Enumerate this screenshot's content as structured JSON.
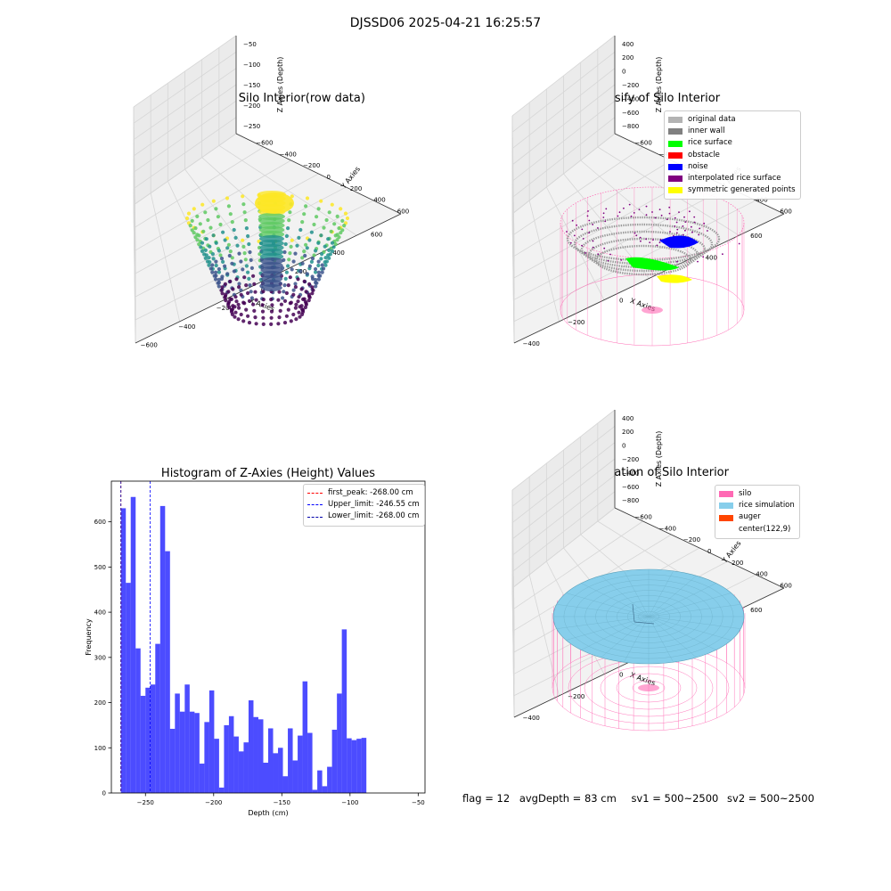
{
  "figure": {
    "title": "DJSSD06 2025-04-21 16:25:57",
    "status": {
      "flag": "flag = 12",
      "avg_depth": "avgDepth = 83 cm",
      "sv1": "sv1 = 500~2500",
      "sv2": "sv2 = 500~2500"
    }
  },
  "panels": {
    "raw": {
      "title": "3D Plot of Silo Interior(row data)",
      "colormap": [
        "#440154",
        "#3b528b",
        "#21918c",
        "#5ec962",
        "#fde725"
      ],
      "x_ticks": [
        "−600",
        "−400",
        "−200",
        "0",
        "200",
        "400",
        "600"
      ],
      "y_ticks": [
        "600",
        "400",
        "200",
        "0",
        "−200",
        "−400",
        "−600"
      ],
      "z_ticks": [
        "−50",
        "−100",
        "−150",
        "−200",
        "−250"
      ],
      "xlabel": "X Axies",
      "ylabel": "Y Axies",
      "zlabel": "Z Axies (Depth)"
    },
    "classify": {
      "title": "3D classify of Silo Interior",
      "x_ticks": [
        "−400",
        "−200",
        "0",
        "200",
        "400",
        "600"
      ],
      "y_ticks": [
        "600",
        "400",
        "200",
        "0",
        "−200",
        "−400",
        "−600"
      ],
      "z_ticks": [
        "400",
        "200",
        "0",
        "−200",
        "−400",
        "−600",
        "−800"
      ],
      "xlabel": "X Axies",
      "ylabel": "Y Axies",
      "zlabel": "Z Axies (Depth)",
      "legend": [
        {
          "label": "original data",
          "color": "#b3b3b3"
        },
        {
          "label": "inner wall",
          "color": "#808080"
        },
        {
          "label": "rice surface",
          "color": "#00ff00"
        },
        {
          "label": "obstacle",
          "color": "#ff0000"
        },
        {
          "label": "noise",
          "color": "#0000ff"
        },
        {
          "label": "interpolated rice surface",
          "color": "#800080"
        },
        {
          "label": "symmetric generated points",
          "color": "#ffff00"
        }
      ]
    },
    "simulation": {
      "title": "3D simulation of Silo Interior",
      "x_ticks": [
        "−400",
        "−200",
        "0",
        "200",
        "400",
        "600"
      ],
      "y_ticks": [
        "600",
        "400",
        "200",
        "0",
        "−200",
        "−400",
        "−600"
      ],
      "z_ticks": [
        "400",
        "200",
        "0",
        "−200",
        "−400",
        "−600",
        "−800"
      ],
      "xlabel": "X Axies",
      "ylabel": "Y Axies",
      "zlabel": "Z Axies (Depth)",
      "legend": [
        {
          "label": "silo",
          "color": "#ff69b4"
        },
        {
          "label": "rice simulation",
          "color": "#87ceeb"
        },
        {
          "label": "auger",
          "color": "#ff4500"
        },
        {
          "label": "center(122,9)",
          "color": "#ffffff"
        }
      ]
    }
  },
  "chart_data": [
    {
      "type": "scatter",
      "title": "3D Plot of Silo Interior(row data)",
      "xlabel": "X Axies",
      "ylabel": "Y Axies",
      "zlabel": "Z Axies (Depth)",
      "xlim": [
        -600,
        600
      ],
      "ylim": [
        -600,
        600
      ],
      "zlim": [
        -270,
        -50
      ],
      "colormap": "viridis",
      "grid": true
    },
    {
      "type": "scatter",
      "title": "3D classify of Silo Interior",
      "xlabel": "X Axies",
      "ylabel": "Y Axies",
      "zlabel": "Z Axies (Depth)",
      "xlim": [
        -500,
        700
      ],
      "ylim": [
        -600,
        600
      ],
      "zlim": [
        -900,
        400
      ],
      "legend_position": "top-right",
      "grid": true
    },
    {
      "type": "bar",
      "title": "Histogram of Z-Axies (Height) Values",
      "xlabel": "Depth (cm)",
      "ylabel": "Frequency",
      "xlim": [
        -275,
        -45
      ],
      "ylim": [
        0,
        690
      ],
      "x_ticks": [
        -250,
        -200,
        -150,
        -100,
        -50
      ],
      "y_ticks": [
        0,
        100,
        200,
        300,
        400,
        500,
        600
      ],
      "bin_start": -268,
      "bin_width": 3.6,
      "color": "#0000ff",
      "values": [
        630,
        465,
        655,
        320,
        215,
        233,
        240,
        330,
        635,
        535,
        142,
        220,
        180,
        240,
        180,
        177,
        65,
        157,
        227,
        120,
        12,
        150,
        170,
        125,
        92,
        112,
        205,
        168,
        163,
        67,
        143,
        88,
        100,
        37,
        143,
        72,
        127,
        247,
        133,
        7,
        50,
        15,
        58,
        140,
        220,
        362,
        121,
        117,
        120,
        122
      ],
      "vlines": [
        {
          "label": "first_peak: -268.00 cm",
          "x": -268.0,
          "color": "#ff0000"
        },
        {
          "label": "Upper_limit: -246.55 cm",
          "x": -246.55,
          "color": "#0000ff"
        },
        {
          "label": "Lower_limit: -268.00 cm",
          "x": -268.0,
          "color": "#0000aa"
        }
      ],
      "legend_position": "top-right"
    },
    {
      "type": "area",
      "title": "3D simulation of Silo Interior",
      "xlabel": "X Axies",
      "ylabel": "Y Axies",
      "zlabel": "Z Axies (Depth)",
      "xlim": [
        -500,
        700
      ],
      "ylim": [
        -600,
        600
      ],
      "zlim": [
        -900,
        400
      ],
      "legend_position": "top-right",
      "grid": true
    }
  ]
}
